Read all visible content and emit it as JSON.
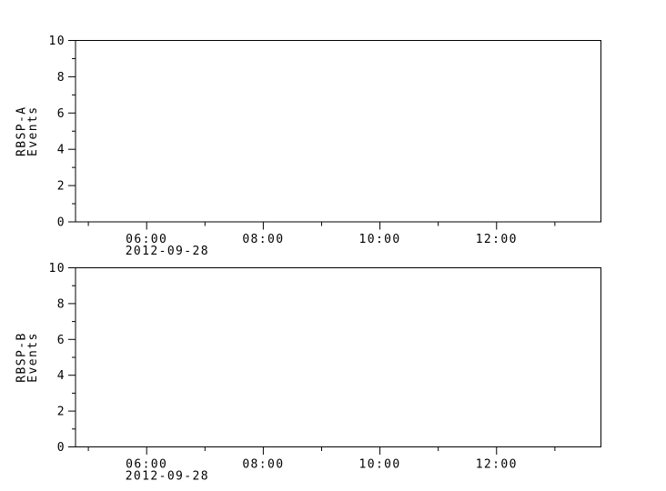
{
  "figure": {
    "background": "#ffffff",
    "axis_color": "#000000"
  },
  "chart_data": [
    {
      "type": "line",
      "panel": "top",
      "title": "",
      "ylabel_lines": [
        "RBSP-A",
        "Events"
      ],
      "ylim": [
        0,
        10
      ],
      "yticks_major": [
        0,
        2,
        4,
        6,
        8,
        10
      ],
      "ytick_minor_step": 1,
      "xlim_hours": [
        4.78,
        13.79
      ],
      "xticks": [
        {
          "hour": 5,
          "label": ""
        },
        {
          "hour": 6,
          "label": "06:00",
          "date": "2012-09-28"
        },
        {
          "hour": 7,
          "label": ""
        },
        {
          "hour": 8,
          "label": "08:00"
        },
        {
          "hour": 9,
          "label": ""
        },
        {
          "hour": 10,
          "label": "10:00"
        },
        {
          "hour": 11,
          "label": ""
        },
        {
          "hour": 12,
          "label": "12:00"
        },
        {
          "hour": 13,
          "label": ""
        }
      ],
      "grid": false,
      "legend": null,
      "series": []
    },
    {
      "type": "line",
      "panel": "bottom",
      "title": "",
      "ylabel_lines": [
        "RBSP-B",
        "Events"
      ],
      "ylim": [
        0,
        10
      ],
      "yticks_major": [
        0,
        2,
        4,
        6,
        8,
        10
      ],
      "ytick_minor_step": 1,
      "xlim_hours": [
        4.78,
        13.79
      ],
      "xticks": [
        {
          "hour": 5,
          "label": ""
        },
        {
          "hour": 6,
          "label": "06:00",
          "date": "2012-09-28"
        },
        {
          "hour": 7,
          "label": ""
        },
        {
          "hour": 8,
          "label": "08:00"
        },
        {
          "hour": 9,
          "label": ""
        },
        {
          "hour": 10,
          "label": "10:00"
        },
        {
          "hour": 11,
          "label": ""
        },
        {
          "hour": 12,
          "label": "12:00"
        },
        {
          "hour": 13,
          "label": ""
        }
      ],
      "grid": false,
      "legend": null,
      "series": []
    }
  ]
}
